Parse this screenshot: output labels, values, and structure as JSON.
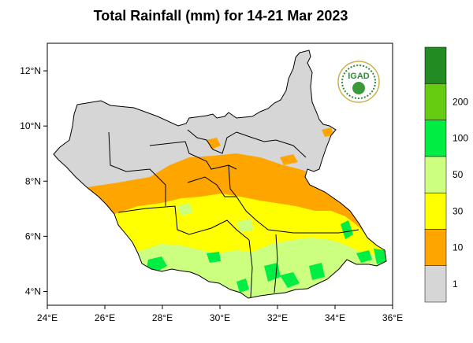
{
  "title": "Total Rainfall (mm) for 14-21 Mar 2023",
  "axes": {
    "x_ticks": [
      "24°E",
      "26°E",
      "28°E",
      "30°E",
      "32°E",
      "34°E",
      "36°E"
    ],
    "y_ticks": [
      "12°N",
      "10°N",
      "8°N",
      "6°N",
      "4°N"
    ],
    "lon_range": [
      24,
      36
    ],
    "lat_range": [
      3.5,
      13
    ]
  },
  "legend": {
    "bins": [
      {
        "label": "1",
        "color": "#d6d6d6"
      },
      {
        "label": "10",
        "color": "#ffa500"
      },
      {
        "label": "30",
        "color": "#ffff00"
      },
      {
        "label": "50",
        "color": "#ccff7f"
      },
      {
        "label": "100",
        "color": "#00ee44"
      },
      {
        "label": "200",
        "color": "#66cc11"
      },
      {
        "label": "",
        "color": "#228b22"
      }
    ]
  },
  "logo": {
    "text": "IGAD",
    "color": "#2e8b3a"
  },
  "colors": {
    "country_fill": "#d6d6d6",
    "boundary": "#000000"
  }
}
